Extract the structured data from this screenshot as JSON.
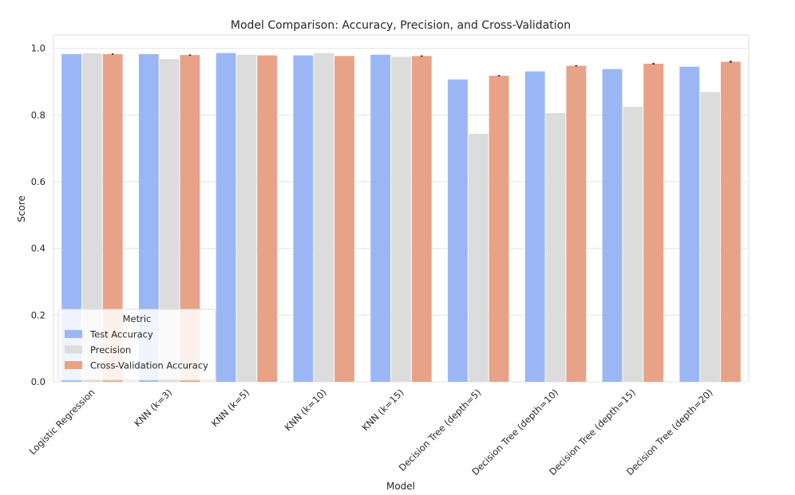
{
  "chart_data": {
    "type": "bar",
    "title": "Model Comparison: Accuracy, Precision, and Cross-Validation",
    "xlabel": "Model",
    "ylabel": "Score",
    "ylim": [
      0,
      1.04
    ],
    "yticks": [
      "0.0",
      "0.2",
      "0.4",
      "0.6",
      "0.8",
      "1.0"
    ],
    "grid": true,
    "categories": [
      "Logistic Regression",
      "KNN (k=3)",
      "KNN (k=5)",
      "KNN (k=10)",
      "KNN (k=15)",
      "Decision Tree (depth=5)",
      "Decision Tree (depth=10)",
      "Decision Tree (depth=15)",
      "Decision Tree (depth=20)"
    ],
    "series": [
      {
        "name": "Test Accuracy",
        "color": "#9bb6f4",
        "values": [
          0.983,
          0.983,
          0.986,
          0.979,
          0.981,
          0.907,
          0.931,
          0.938,
          0.945
        ],
        "error": [
          0,
          0,
          0,
          0,
          0,
          0,
          0,
          0,
          0
        ]
      },
      {
        "name": "Precision",
        "color": "#dcdcdc",
        "values": [
          0.985,
          0.968,
          0.981,
          0.986,
          0.975,
          0.744,
          0.806,
          0.825,
          0.869
        ],
        "error": [
          0,
          0,
          0,
          0,
          0,
          0,
          0,
          0,
          0
        ]
      },
      {
        "name": "Cross-Validation Accuracy",
        "color": "#e8a287",
        "values": [
          0.983,
          0.98,
          0.979,
          0.977,
          0.977,
          0.918,
          0.948,
          0.954,
          0.96
        ],
        "error": [
          0.004,
          0.004,
          0,
          0,
          0.004,
          0.004,
          0.004,
          0.005,
          0.006
        ]
      }
    ],
    "legend": {
      "title": "Metric",
      "placement": "lower-left"
    }
  }
}
